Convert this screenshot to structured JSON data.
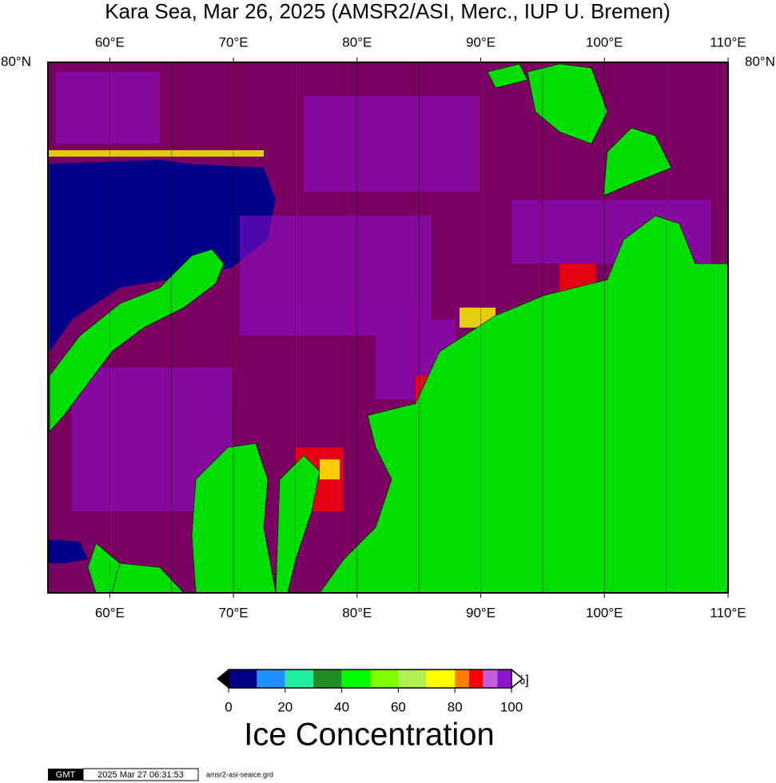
{
  "title": "Kara Sea, Mar 26, 2025 (AMSR2/ASI, Merc., IUP U. Bremen)",
  "map": {
    "lon_range": [
      55,
      110
    ],
    "lon_ticks": [
      {
        "value": 60,
        "label": "60°E"
      },
      {
        "value": 70,
        "label": "70°E"
      },
      {
        "value": 80,
        "label": "80°E"
      },
      {
        "value": 90,
        "label": "90°E"
      },
      {
        "value": 100,
        "label": "100°E"
      },
      {
        "value": 110,
        "label": "110°E"
      }
    ],
    "meridians": [
      60,
      65,
      70,
      75,
      80,
      85,
      90,
      95,
      100,
      105
    ],
    "lat_label": {
      "value": 80,
      "label": "80°N"
    }
  },
  "colorbar": {
    "range": [
      0,
      100
    ],
    "ticks": [
      0,
      20,
      40,
      60,
      80,
      100
    ],
    "edges": [
      0,
      10,
      20,
      30,
      40,
      50,
      60,
      70,
      80,
      85,
      90,
      95,
      100
    ],
    "colors": [
      "#000088",
      "#1e90ff",
      "#20f0a0",
      "#228b22",
      "#00ff00",
      "#80ff00",
      "#b0f050",
      "#ffff00",
      "#ff8000",
      "#ff0000",
      "#c060e0",
      "#9010d0"
    ],
    "unit_label": "C[%]",
    "title": "Ice Concentration"
  },
  "footer": {
    "logo": "GMT",
    "timestamp": "2025 Mar 27 06:31:53",
    "filename": "amsr2-asi-seaice.grd"
  }
}
